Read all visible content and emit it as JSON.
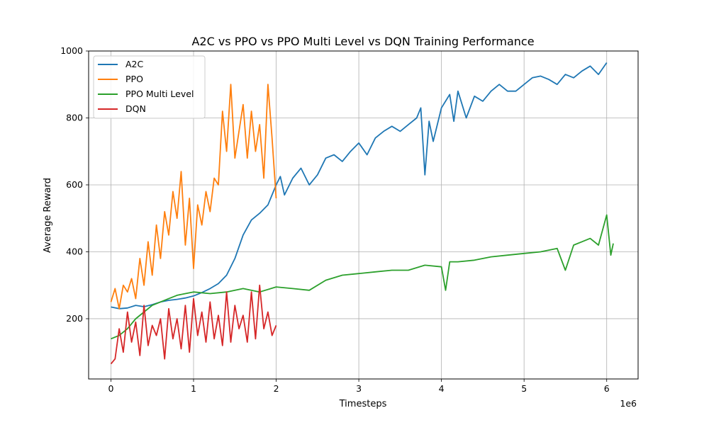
{
  "chart_data": {
    "type": "line",
    "title": "A2C vs PPO vs PPO Multi Level vs DQN Training Performance",
    "xlabel": "Timesteps",
    "ylabel": "Average Reward",
    "x_scale_label": "1e6",
    "xlim": [
      -0.27,
      6.38
    ],
    "ylim": [
      20,
      1000
    ],
    "x_ticks": [
      0,
      1,
      2,
      3,
      4,
      5,
      6
    ],
    "x_tick_labels": [
      "0",
      "1",
      "2",
      "3",
      "4",
      "5",
      "6"
    ],
    "y_ticks": [
      200,
      400,
      600,
      800,
      1000
    ],
    "y_tick_labels": [
      "200",
      "400",
      "600",
      "800",
      "1000"
    ],
    "grid": true,
    "legend_position": "top-left",
    "series": [
      {
        "name": "A2C",
        "color": "#1f77b4",
        "x": [
          0,
          0.1,
          0.2,
          0.3,
          0.4,
          0.5,
          0.6,
          0.7,
          0.8,
          0.9,
          1.0,
          1.1,
          1.2,
          1.3,
          1.4,
          1.5,
          1.6,
          1.7,
          1.8,
          1.9,
          2.0,
          2.05,
          2.1,
          2.2,
          2.3,
          2.4,
          2.5,
          2.6,
          2.7,
          2.8,
          2.9,
          3.0,
          3.1,
          3.2,
          3.3,
          3.4,
          3.5,
          3.6,
          3.7,
          3.75,
          3.8,
          3.85,
          3.9,
          4.0,
          4.1,
          4.15,
          4.2,
          4.3,
          4.4,
          4.5,
          4.6,
          4.7,
          4.8,
          4.9,
          5.0,
          5.1,
          5.2,
          5.3,
          5.4,
          5.5,
          5.6,
          5.7,
          5.8,
          5.9,
          6.0
        ],
        "values": [
          235,
          230,
          232,
          240,
          236,
          242,
          250,
          255,
          258,
          262,
          268,
          278,
          290,
          305,
          330,
          380,
          450,
          495,
          515,
          540,
          600,
          625,
          570,
          620,
          650,
          600,
          630,
          680,
          690,
          670,
          700,
          725,
          690,
          740,
          760,
          775,
          760,
          780,
          800,
          830,
          630,
          790,
          730,
          830,
          870,
          790,
          880,
          800,
          865,
          850,
          880,
          900,
          880,
          880,
          900,
          920,
          925,
          915,
          900,
          930,
          920,
          940,
          955,
          930,
          965
        ]
      },
      {
        "name": "PPO",
        "color": "#ff7f0e",
        "x": [
          0,
          0.05,
          0.1,
          0.15,
          0.2,
          0.25,
          0.3,
          0.35,
          0.4,
          0.45,
          0.5,
          0.55,
          0.6,
          0.65,
          0.7,
          0.75,
          0.8,
          0.85,
          0.9,
          0.95,
          1.0,
          1.05,
          1.1,
          1.15,
          1.2,
          1.25,
          1.3,
          1.35,
          1.4,
          1.45,
          1.5,
          1.55,
          1.6,
          1.65,
          1.7,
          1.75,
          1.8,
          1.85,
          1.9,
          1.95,
          2.0
        ],
        "values": [
          250,
          290,
          230,
          300,
          280,
          320,
          260,
          380,
          300,
          430,
          330,
          480,
          380,
          520,
          450,
          580,
          500,
          640,
          420,
          560,
          350,
          540,
          480,
          580,
          520,
          620,
          600,
          820,
          700,
          900,
          680,
          760,
          840,
          680,
          820,
          700,
          780,
          620,
          900,
          740,
          560
        ]
      },
      {
        "name": "PPO Multi Level",
        "color": "#2ca02c",
        "x": [
          0,
          0.1,
          0.2,
          0.3,
          0.4,
          0.5,
          0.6,
          0.7,
          0.8,
          0.9,
          1.0,
          1.2,
          1.4,
          1.6,
          1.8,
          2.0,
          2.2,
          2.4,
          2.6,
          2.8,
          3.0,
          3.2,
          3.4,
          3.6,
          3.8,
          4.0,
          4.05,
          4.1,
          4.2,
          4.4,
          4.6,
          4.8,
          5.0,
          5.2,
          5.4,
          5.5,
          5.6,
          5.7,
          5.8,
          5.9,
          6.0,
          6.05,
          6.08
        ],
        "values": [
          140,
          150,
          170,
          200,
          220,
          240,
          250,
          260,
          270,
          275,
          280,
          275,
          280,
          290,
          280,
          295,
          290,
          285,
          315,
          330,
          335,
          340,
          345,
          345,
          360,
          355,
          285,
          370,
          370,
          375,
          385,
          390,
          395,
          400,
          410,
          345,
          420,
          430,
          440,
          420,
          510,
          390,
          425
        ]
      },
      {
        "name": "DQN",
        "color": "#d62728",
        "x": [
          0,
          0.05,
          0.1,
          0.15,
          0.2,
          0.25,
          0.3,
          0.35,
          0.4,
          0.45,
          0.5,
          0.55,
          0.6,
          0.65,
          0.7,
          0.75,
          0.8,
          0.85,
          0.9,
          0.95,
          1.0,
          1.05,
          1.1,
          1.15,
          1.2,
          1.25,
          1.3,
          1.35,
          1.4,
          1.45,
          1.5,
          1.55,
          1.6,
          1.65,
          1.7,
          1.75,
          1.8,
          1.85,
          1.9,
          1.95,
          2.0
        ],
        "values": [
          65,
          80,
          170,
          100,
          220,
          130,
          190,
          90,
          240,
          120,
          180,
          150,
          200,
          80,
          230,
          140,
          200,
          110,
          240,
          100,
          260,
          150,
          220,
          130,
          250,
          140,
          210,
          120,
          280,
          130,
          240,
          170,
          210,
          130,
          280,
          140,
          300,
          170,
          220,
          150,
          180
        ]
      }
    ]
  }
}
